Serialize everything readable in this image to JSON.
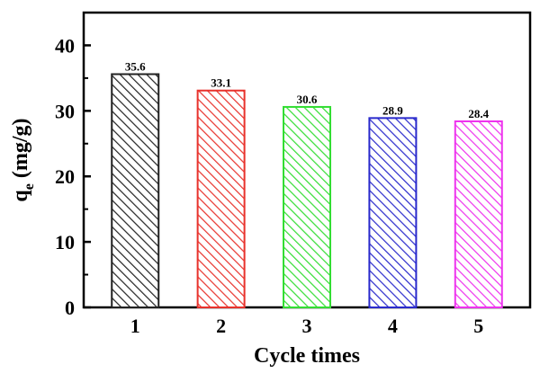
{
  "chart_data": {
    "type": "bar",
    "categories": [
      "1",
      "2",
      "3",
      "4",
      "5"
    ],
    "values": [
      35.6,
      33.1,
      30.6,
      28.9,
      28.4
    ],
    "data_labels": [
      "35.6",
      "33.1",
      "30.6",
      "28.9",
      "28.4"
    ],
    "title": "",
    "xlabel": "Cycle times",
    "ylabel": {
      "main": "q",
      "subscript": "e",
      "unit": " (mg/g)"
    },
    "ylim": [
      0,
      45
    ],
    "yticks": [
      "0",
      "10",
      "20",
      "30",
      "40"
    ],
    "grid": false,
    "bar_fill": "hatched",
    "colors": [
      "#222222",
      "#e8322c",
      "#33dd33",
      "#2a2acc",
      "#ee33ee"
    ]
  }
}
